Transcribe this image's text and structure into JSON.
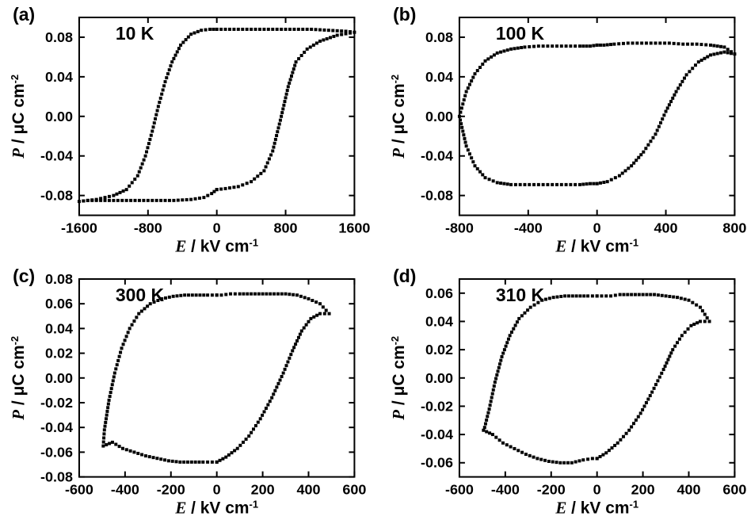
{
  "figure": {
    "background_color": "#ffffff",
    "stroke_color": "#000000",
    "marker_color": "#000000",
    "panels": [
      {
        "key": "a",
        "tag": "(a)",
        "annotation": "10 K",
        "xlabel": "E / kV cm⁻¹",
        "ylabel": "P / μC cm⁻²",
        "xlim": [
          -1600,
          1600
        ],
        "ylim": [
          -0.1,
          0.1
        ],
        "xticks": [
          -1600,
          -800,
          0,
          800,
          1600
        ],
        "yticks": [
          -0.08,
          -0.04,
          0.0,
          0.04,
          0.08
        ],
        "ytick_labels": [
          "-0.08",
          "-0.04",
          "0.00",
          "0.04",
          "0.08"
        ],
        "marker_size": 4.0,
        "curve1_xy": [
          [
            0,
            -0.074
          ],
          [
            100,
            -0.073
          ],
          [
            250,
            -0.071
          ],
          [
            400,
            -0.066
          ],
          [
            550,
            -0.055
          ],
          [
            650,
            -0.035
          ],
          [
            750,
            0.0
          ],
          [
            830,
            0.03
          ],
          [
            920,
            0.055
          ],
          [
            1050,
            0.068
          ],
          [
            1200,
            0.076
          ],
          [
            1400,
            0.082
          ],
          [
            1600,
            0.085
          ],
          [
            1500,
            0.086
          ],
          [
            1300,
            0.087
          ],
          [
            1100,
            0.088
          ],
          [
            900,
            0.088
          ],
          [
            700,
            0.088
          ],
          [
            500,
            0.088
          ],
          [
            300,
            0.088
          ],
          [
            150,
            0.088
          ],
          [
            50,
            0.088
          ],
          [
            0,
            0.088
          ]
        ],
        "curve2_xy": [
          [
            0,
            0.088
          ],
          [
            -80,
            0.088
          ],
          [
            -180,
            0.087
          ],
          [
            -300,
            0.083
          ],
          [
            -420,
            0.072
          ],
          [
            -520,
            0.055
          ],
          [
            -600,
            0.035
          ],
          [
            -680,
            0.01
          ],
          [
            -750,
            -0.015
          ],
          [
            -830,
            -0.04
          ],
          [
            -920,
            -0.06
          ],
          [
            -1050,
            -0.074
          ],
          [
            -1200,
            -0.08
          ],
          [
            -1400,
            -0.084
          ],
          [
            -1600,
            -0.086
          ],
          [
            -1500,
            -0.085
          ],
          [
            -1300,
            -0.085
          ],
          [
            -1100,
            -0.085
          ],
          [
            -900,
            -0.085
          ],
          [
            -700,
            -0.085
          ],
          [
            -500,
            -0.085
          ],
          [
            -300,
            -0.084
          ],
          [
            -150,
            -0.082
          ],
          [
            -60,
            -0.078
          ],
          [
            0,
            -0.074
          ]
        ]
      },
      {
        "key": "b",
        "tag": "(b)",
        "annotation": "100 K",
        "xlabel": "E / kV cm⁻¹",
        "ylabel": "P / μC cm⁻²",
        "xlim": [
          -800,
          800
        ],
        "ylim": [
          -0.1,
          0.1
        ],
        "xticks": [
          -800,
          -400,
          0,
          400,
          800
        ],
        "yticks": [
          -0.08,
          -0.04,
          0.0,
          0.04,
          0.08
        ],
        "ytick_labels": [
          "-0.08",
          "-0.04",
          "0.00",
          "0.04",
          "0.08"
        ],
        "marker_size": 4.0,
        "curve1_xy": [
          [
            0,
            -0.068
          ],
          [
            60,
            -0.066
          ],
          [
            130,
            -0.06
          ],
          [
            200,
            -0.05
          ],
          [
            270,
            -0.036
          ],
          [
            340,
            -0.018
          ],
          [
            400,
            0.005
          ],
          [
            460,
            0.025
          ],
          [
            520,
            0.042
          ],
          [
            590,
            0.055
          ],
          [
            660,
            0.062
          ],
          [
            740,
            0.065
          ],
          [
            800,
            0.063
          ],
          [
            740,
            0.07
          ],
          [
            660,
            0.072
          ],
          [
            580,
            0.073
          ],
          [
            500,
            0.073
          ],
          [
            420,
            0.074
          ],
          [
            340,
            0.074
          ],
          [
            260,
            0.074
          ],
          [
            180,
            0.074
          ],
          [
            100,
            0.073
          ],
          [
            40,
            0.072
          ],
          [
            0,
            0.072
          ]
        ],
        "curve2_xy": [
          [
            0,
            0.072
          ],
          [
            -40,
            0.071
          ],
          [
            -100,
            0.071
          ],
          [
            -180,
            0.071
          ],
          [
            -260,
            0.071
          ],
          [
            -340,
            0.071
          ],
          [
            -420,
            0.07
          ],
          [
            -500,
            0.068
          ],
          [
            -580,
            0.064
          ],
          [
            -650,
            0.056
          ],
          [
            -710,
            0.043
          ],
          [
            -760,
            0.025
          ],
          [
            -800,
            0.0
          ],
          [
            -760,
            -0.03
          ],
          [
            -710,
            -0.05
          ],
          [
            -650,
            -0.062
          ],
          [
            -580,
            -0.067
          ],
          [
            -500,
            -0.069
          ],
          [
            -420,
            -0.069
          ],
          [
            -340,
            -0.069
          ],
          [
            -260,
            -0.069
          ],
          [
            -180,
            -0.069
          ],
          [
            -100,
            -0.069
          ],
          [
            -40,
            -0.068
          ],
          [
            0,
            -0.068
          ]
        ]
      },
      {
        "key": "c",
        "tag": "(c)",
        "annotation": "300 K",
        "xlabel": "E / kV cm⁻¹",
        "ylabel": "P / μC cm⁻²",
        "xlim": [
          -600,
          600
        ],
        "ylim": [
          -0.08,
          0.08
        ],
        "xticks": [
          -600,
          -400,
          -200,
          0,
          200,
          400,
          600
        ],
        "yticks": [
          -0.08,
          -0.06,
          -0.04,
          -0.02,
          0.0,
          0.02,
          0.04,
          0.06,
          0.08
        ],
        "ytick_labels": [
          "-0.08",
          "-0.06",
          "-0.04",
          "-0.02",
          "0.00",
          "0.02",
          "0.04",
          "0.06",
          "0.08"
        ],
        "marker_size": 4.0,
        "curve1_xy": [
          [
            0,
            -0.068
          ],
          [
            40,
            -0.064
          ],
          [
            90,
            -0.057
          ],
          [
            140,
            -0.047
          ],
          [
            190,
            -0.033
          ],
          [
            240,
            -0.016
          ],
          [
            290,
            0.004
          ],
          [
            330,
            0.022
          ],
          [
            370,
            0.038
          ],
          [
            410,
            0.048
          ],
          [
            450,
            0.052
          ],
          [
            490,
            0.052
          ],
          [
            450,
            0.06
          ],
          [
            400,
            0.064
          ],
          [
            350,
            0.067
          ],
          [
            300,
            0.068
          ],
          [
            250,
            0.068
          ],
          [
            200,
            0.068
          ],
          [
            150,
            0.068
          ],
          [
            100,
            0.068
          ],
          [
            60,
            0.068
          ],
          [
            20,
            0.067
          ],
          [
            0,
            0.067
          ]
        ],
        "curve2_xy": [
          [
            0,
            0.067
          ],
          [
            -40,
            0.067
          ],
          [
            -90,
            0.067
          ],
          [
            -140,
            0.067
          ],
          [
            -190,
            0.066
          ],
          [
            -240,
            0.064
          ],
          [
            -290,
            0.06
          ],
          [
            -340,
            0.052
          ],
          [
            -380,
            0.04
          ],
          [
            -415,
            0.024
          ],
          [
            -445,
            0.004
          ],
          [
            -470,
            -0.018
          ],
          [
            -490,
            -0.042
          ],
          [
            -495,
            -0.055
          ],
          [
            -455,
            -0.052
          ],
          [
            -410,
            -0.057
          ],
          [
            -360,
            -0.06
          ],
          [
            -310,
            -0.063
          ],
          [
            -260,
            -0.065
          ],
          [
            -210,
            -0.067
          ],
          [
            -160,
            -0.068
          ],
          [
            -110,
            -0.068
          ],
          [
            -60,
            -0.068
          ],
          [
            -20,
            -0.068
          ],
          [
            0,
            -0.068
          ]
        ]
      },
      {
        "key": "d",
        "tag": "(d)",
        "annotation": "310 K",
        "xlabel": "E / kV cm⁻¹",
        "ylabel": "P / μC cm⁻²",
        "xlim": [
          -600,
          600
        ],
        "ylim": [
          -0.07,
          0.07
        ],
        "xticks": [
          -600,
          -400,
          -200,
          0,
          200,
          400,
          600
        ],
        "yticks": [
          -0.06,
          -0.04,
          -0.02,
          0.0,
          0.02,
          0.04,
          0.06
        ],
        "ytick_labels": [
          "-0.06",
          "-0.04",
          "-0.02",
          "0.00",
          "0.02",
          "0.04",
          "0.06"
        ],
        "marker_size": 4.0,
        "curve1_xy": [
          [
            0,
            -0.057
          ],
          [
            40,
            -0.053
          ],
          [
            90,
            -0.046
          ],
          [
            140,
            -0.037
          ],
          [
            190,
            -0.025
          ],
          [
            240,
            -0.01
          ],
          [
            290,
            0.006
          ],
          [
            330,
            0.02
          ],
          [
            370,
            0.03
          ],
          [
            410,
            0.037
          ],
          [
            450,
            0.04
          ],
          [
            490,
            0.04
          ],
          [
            450,
            0.05
          ],
          [
            400,
            0.055
          ],
          [
            350,
            0.057
          ],
          [
            300,
            0.058
          ],
          [
            250,
            0.059
          ],
          [
            200,
            0.059
          ],
          [
            150,
            0.059
          ],
          [
            100,
            0.059
          ],
          [
            60,
            0.058
          ],
          [
            20,
            0.058
          ],
          [
            0,
            0.058
          ]
        ],
        "curve2_xy": [
          [
            0,
            0.058
          ],
          [
            -40,
            0.058
          ],
          [
            -90,
            0.058
          ],
          [
            -140,
            0.058
          ],
          [
            -190,
            0.057
          ],
          [
            -240,
            0.055
          ],
          [
            -290,
            0.05
          ],
          [
            -340,
            0.042
          ],
          [
            -380,
            0.03
          ],
          [
            -415,
            0.015
          ],
          [
            -445,
            -0.003
          ],
          [
            -470,
            -0.022
          ],
          [
            -490,
            -0.035
          ],
          [
            -495,
            -0.037
          ],
          [
            -455,
            -0.04
          ],
          [
            -410,
            -0.046
          ],
          [
            -360,
            -0.05
          ],
          [
            -310,
            -0.054
          ],
          [
            -260,
            -0.057
          ],
          [
            -210,
            -0.059
          ],
          [
            -160,
            -0.06
          ],
          [
            -110,
            -0.06
          ],
          [
            -60,
            -0.058
          ],
          [
            -20,
            -0.057
          ],
          [
            0,
            -0.057
          ]
        ]
      }
    ]
  }
}
